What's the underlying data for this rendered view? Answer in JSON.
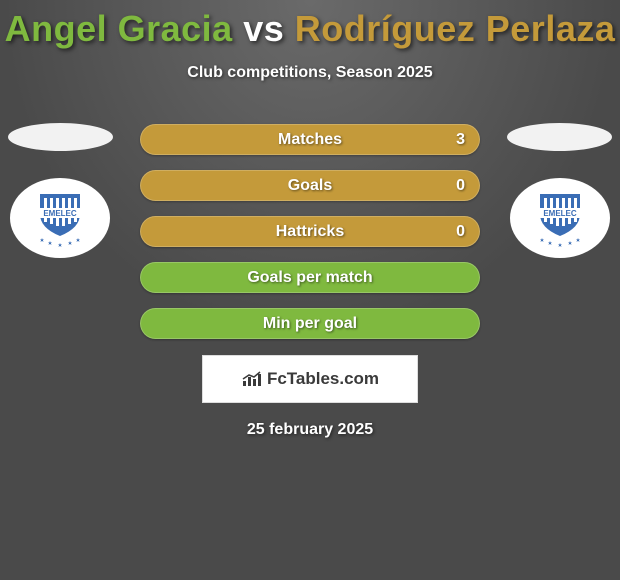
{
  "title": {
    "player1": "Angel Gracia",
    "vs": "vs",
    "player2": "Rodríguez Perlaza",
    "color_p1": "#7fb93f",
    "color_vs": "#ffffff",
    "color_p2": "#c49a3a"
  },
  "subtitle": "Club competitions, Season 2025",
  "ellipse_color_left": "#f2f2f2",
  "ellipse_color_right": "#f2f2f2",
  "badge": {
    "shield_fill": "#3a6db5",
    "shield_stripes": "#ffffff",
    "star_fill": "#3a6db5",
    "text": "EMELEC",
    "text_color": "#3a6db5"
  },
  "stats": [
    {
      "label": "Matches",
      "value_right": "3",
      "bg": "#c49a3a",
      "text_color": "#ffffff"
    },
    {
      "label": "Goals",
      "value_right": "0",
      "bg": "#c49a3a",
      "text_color": "#ffffff"
    },
    {
      "label": "Hattricks",
      "value_right": "0",
      "bg": "#c49a3a",
      "text_color": "#ffffff"
    },
    {
      "label": "Goals per match",
      "value_right": "",
      "bg": "#7fb93f",
      "text_color": "#ffffff"
    },
    {
      "label": "Min per goal",
      "value_right": "",
      "bg": "#7fb93f",
      "text_color": "#ffffff"
    }
  ],
  "brand": {
    "name": "FcTables.com",
    "icon_color": "#3a3a3a"
  },
  "date": "25 february 2025"
}
